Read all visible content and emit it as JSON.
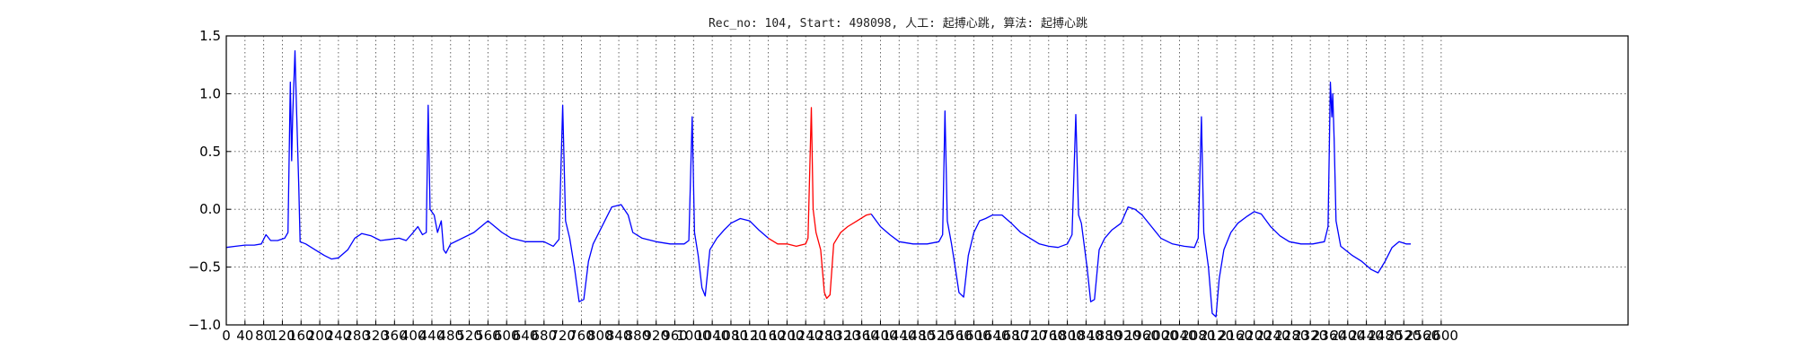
{
  "chart_data": {
    "type": "line",
    "title": "Rec_no: 104, Start: 498098, 人工: 起搏心跳, 算法: 起搏心跳",
    "xlabel": "",
    "ylabel": "",
    "xlim": [
      0,
      3000
    ],
    "ylim": [
      -1.0,
      1.5
    ],
    "grid": true,
    "legend": "none",
    "x_ticks": [
      0,
      40,
      80,
      120,
      160,
      200,
      240,
      280,
      320,
      360,
      400,
      440,
      480,
      520,
      560,
      600,
      640,
      680,
      720,
      760,
      800,
      840,
      880,
      920,
      960,
      1000,
      1040,
      1080,
      1120,
      1160,
      1200,
      1240,
      1280,
      1320,
      1360,
      1400,
      1440,
      1480,
      1520,
      1560,
      1600,
      1640,
      1680,
      1720,
      1760,
      1800,
      1840,
      1880,
      1920,
      1960,
      2000,
      2040,
      2080,
      2120,
      2160,
      2200,
      2240,
      2280,
      2320,
      2360,
      2400,
      2440,
      2480,
      2520,
      2560,
      2600
    ],
    "x_tick_labels": [
      "0",
      "40",
      "80",
      "120",
      "160",
      "200",
      "240",
      "280",
      "320",
      "360",
      "400",
      "440",
      "480",
      "520",
      "560",
      "600",
      "640",
      "680",
      "720",
      "760",
      "800",
      "840",
      "880",
      "920",
      "960",
      "1000",
      "1040",
      "1080",
      "1120",
      "1160",
      "1200",
      "1240",
      "1280",
      "1320",
      "1360",
      "1400",
      "1440",
      "1480",
      "1520",
      "1560",
      "1600",
      "1640",
      "1680",
      "1720",
      "1760",
      "1800",
      "1840",
      "1880",
      "1920",
      "1960",
      "2000",
      "2040",
      "2080",
      "2120",
      "2160",
      "2200",
      "2240",
      "2280",
      "2320",
      "2360",
      "2400",
      "2440",
      "2480",
      "2520",
      "2560",
      "2600"
    ],
    "y_ticks": [
      -1.0,
      -0.5,
      0.0,
      0.5,
      1.0,
      1.5
    ],
    "y_tick_labels": [
      "−1.0",
      "−0.5",
      "0.0",
      "0.5",
      "1.0",
      "1.5"
    ],
    "colors": {
      "signal": "#0000ff",
      "highlight": "#ff0000"
    },
    "series": [
      {
        "color": "#0000ff",
        "points": [
          [
            0,
            -0.33
          ],
          [
            20,
            -0.32
          ],
          [
            40,
            -0.31
          ],
          [
            60,
            -0.31
          ],
          [
            75,
            -0.3
          ],
          [
            85,
            -0.22
          ],
          [
            95,
            -0.27
          ],
          [
            110,
            -0.27
          ],
          [
            125,
            -0.25
          ],
          [
            132,
            -0.2
          ],
          [
            137,
            1.1
          ],
          [
            140,
            0.42
          ],
          [
            142,
            0.8
          ],
          [
            147,
            1.37
          ],
          [
            150,
            0.9
          ],
          [
            155,
            0.2
          ],
          [
            158,
            -0.28
          ],
          [
            170,
            -0.3
          ],
          [
            190,
            -0.35
          ],
          [
            210,
            -0.4
          ],
          [
            225,
            -0.43
          ],
          [
            240,
            -0.42
          ],
          [
            260,
            -0.35
          ],
          [
            275,
            -0.25
          ],
          [
            290,
            -0.21
          ],
          [
            310,
            -0.23
          ],
          [
            330,
            -0.27
          ],
          [
            350,
            -0.26
          ],
          [
            370,
            -0.25
          ],
          [
            385,
            -0.27
          ],
          [
            400,
            -0.2
          ],
          [
            410,
            -0.15
          ],
          [
            420,
            -0.22
          ],
          [
            428,
            -0.2
          ],
          [
            432,
            0.9
          ],
          [
            436,
            0.0
          ],
          [
            445,
            -0.05
          ],
          [
            452,
            -0.2
          ],
          [
            460,
            -0.1
          ],
          [
            465,
            -0.35
          ],
          [
            470,
            -0.38
          ],
          [
            480,
            -0.3
          ],
          [
            500,
            -0.26
          ],
          [
            530,
            -0.2
          ],
          [
            560,
            -0.1
          ],
          [
            590,
            -0.2
          ],
          [
            610,
            -0.25
          ],
          [
            640,
            -0.28
          ],
          [
            680,
            -0.28
          ],
          [
            700,
            -0.32
          ],
          [
            712,
            -0.26
          ],
          [
            720,
            0.9
          ],
          [
            726,
            -0.1
          ],
          [
            735,
            -0.25
          ],
          [
            745,
            -0.5
          ],
          [
            755,
            -0.8
          ],
          [
            765,
            -0.78
          ],
          [
            775,
            -0.45
          ],
          [
            785,
            -0.3
          ],
          [
            800,
            -0.18
          ],
          [
            810,
            -0.1
          ],
          [
            825,
            0.02
          ],
          [
            845,
            0.04
          ],
          [
            860,
            -0.05
          ],
          [
            870,
            -0.2
          ],
          [
            890,
            -0.25
          ],
          [
            920,
            -0.28
          ],
          [
            950,
            -0.3
          ],
          [
            980,
            -0.3
          ],
          [
            990,
            -0.27
          ],
          [
            997,
            0.8
          ],
          [
            1002,
            -0.2
          ],
          [
            1010,
            -0.4
          ],
          [
            1018,
            -0.68
          ],
          [
            1025,
            -0.75
          ],
          [
            1035,
            -0.35
          ],
          [
            1050,
            -0.25
          ],
          [
            1065,
            -0.18
          ],
          [
            1080,
            -0.12
          ],
          [
            1100,
            -0.08
          ],
          [
            1120,
            -0.1
          ],
          [
            1140,
            -0.18
          ],
          [
            1160,
            -0.25
          ]
        ]
      },
      {
        "color": "#ff0000",
        "points": [
          [
            1160,
            -0.25
          ],
          [
            1180,
            -0.3
          ],
          [
            1200,
            -0.3
          ],
          [
            1220,
            -0.32
          ],
          [
            1240,
            -0.3
          ],
          [
            1245,
            -0.25
          ],
          [
            1252,
            0.88
          ],
          [
            1256,
            0.0
          ],
          [
            1262,
            -0.2
          ],
          [
            1272,
            -0.35
          ],
          [
            1280,
            -0.72
          ],
          [
            1285,
            -0.77
          ],
          [
            1292,
            -0.74
          ],
          [
            1300,
            -0.3
          ],
          [
            1315,
            -0.2
          ],
          [
            1330,
            -0.15
          ],
          [
            1350,
            -0.1
          ],
          [
            1370,
            -0.05
          ],
          [
            1380,
            -0.04
          ]
        ]
      },
      {
        "color": "#0000ff",
        "points": [
          [
            1380,
            -0.04
          ],
          [
            1400,
            -0.15
          ],
          [
            1420,
            -0.22
          ],
          [
            1440,
            -0.28
          ],
          [
            1470,
            -0.3
          ],
          [
            1500,
            -0.3
          ],
          [
            1525,
            -0.28
          ],
          [
            1533,
            -0.22
          ],
          [
            1538,
            0.85
          ],
          [
            1543,
            -0.1
          ],
          [
            1552,
            -0.3
          ],
          [
            1560,
            -0.5
          ],
          [
            1568,
            -0.72
          ],
          [
            1578,
            -0.76
          ],
          [
            1588,
            -0.4
          ],
          [
            1600,
            -0.2
          ],
          [
            1612,
            -0.1
          ],
          [
            1625,
            -0.08
          ],
          [
            1640,
            -0.05
          ],
          [
            1660,
            -0.05
          ],
          [
            1680,
            -0.12
          ],
          [
            1700,
            -0.2
          ],
          [
            1720,
            -0.25
          ],
          [
            1740,
            -0.3
          ],
          [
            1760,
            -0.32
          ],
          [
            1780,
            -0.33
          ],
          [
            1800,
            -0.3
          ],
          [
            1810,
            -0.22
          ],
          [
            1818,
            0.82
          ],
          [
            1824,
            -0.05
          ],
          [
            1830,
            -0.12
          ],
          [
            1842,
            -0.5
          ],
          [
            1850,
            -0.8
          ],
          [
            1858,
            -0.78
          ],
          [
            1868,
            -0.35
          ],
          [
            1880,
            -0.25
          ],
          [
            1895,
            -0.18
          ],
          [
            1915,
            -0.12
          ],
          [
            1930,
            0.02
          ],
          [
            1945,
            0.0
          ],
          [
            1960,
            -0.05
          ],
          [
            1980,
            -0.15
          ],
          [
            2000,
            -0.25
          ],
          [
            2025,
            -0.3
          ],
          [
            2050,
            -0.32
          ],
          [
            2072,
            -0.33
          ],
          [
            2080,
            -0.25
          ],
          [
            2087,
            0.8
          ],
          [
            2092,
            -0.2
          ],
          [
            2102,
            -0.5
          ],
          [
            2110,
            -0.9
          ],
          [
            2118,
            -0.93
          ],
          [
            2125,
            -0.6
          ],
          [
            2135,
            -0.35
          ],
          [
            2150,
            -0.2
          ],
          [
            2165,
            -0.12
          ],
          [
            2185,
            -0.06
          ],
          [
            2200,
            -0.02
          ],
          [
            2215,
            -0.04
          ],
          [
            2235,
            -0.15
          ],
          [
            2255,
            -0.23
          ],
          [
            2275,
            -0.28
          ],
          [
            2300,
            -0.3
          ],
          [
            2325,
            -0.3
          ],
          [
            2350,
            -0.28
          ],
          [
            2358,
            -0.15
          ],
          [
            2363,
            1.1
          ],
          [
            2366,
            0.8
          ],
          [
            2368,
            1.0
          ],
          [
            2371,
            0.6
          ],
          [
            2375,
            -0.1
          ],
          [
            2385,
            -0.32
          ],
          [
            2410,
            -0.4
          ],
          [
            2430,
            -0.45
          ],
          [
            2450,
            -0.52
          ],
          [
            2465,
            -0.55
          ],
          [
            2480,
            -0.45
          ],
          [
            2495,
            -0.33
          ],
          [
            2510,
            -0.28
          ],
          [
            2525,
            -0.3
          ],
          [
            2535,
            -0.3
          ]
        ]
      }
    ]
  }
}
